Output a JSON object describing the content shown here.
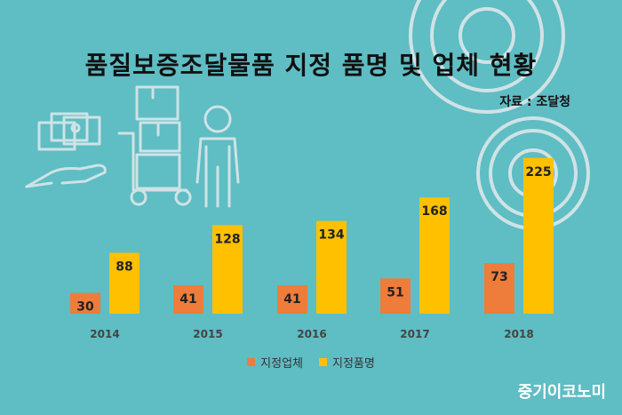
{
  "header": {
    "title": "품질보증조달물품 지정 품명 및 업체 현황",
    "source": "자료 : 조달청"
  },
  "brand": "중기이코노미",
  "colors": {
    "background": "#5fbdc4",
    "series_company": "#ee7c3a",
    "series_product": "#ffc000",
    "decoration": "#c9e0e2"
  },
  "chart_data": {
    "type": "bar",
    "categories": [
      "2014",
      "2015",
      "2016",
      "2017",
      "2018"
    ],
    "series": [
      {
        "name": "지정업체",
        "values": [
          30,
          41,
          41,
          51,
          73
        ]
      },
      {
        "name": "지정품명",
        "values": [
          88,
          128,
          134,
          168,
          225
        ]
      }
    ],
    "ylim": [
      0,
      235
    ],
    "grid": false,
    "legend_position": "bottom",
    "data_labels": true
  }
}
